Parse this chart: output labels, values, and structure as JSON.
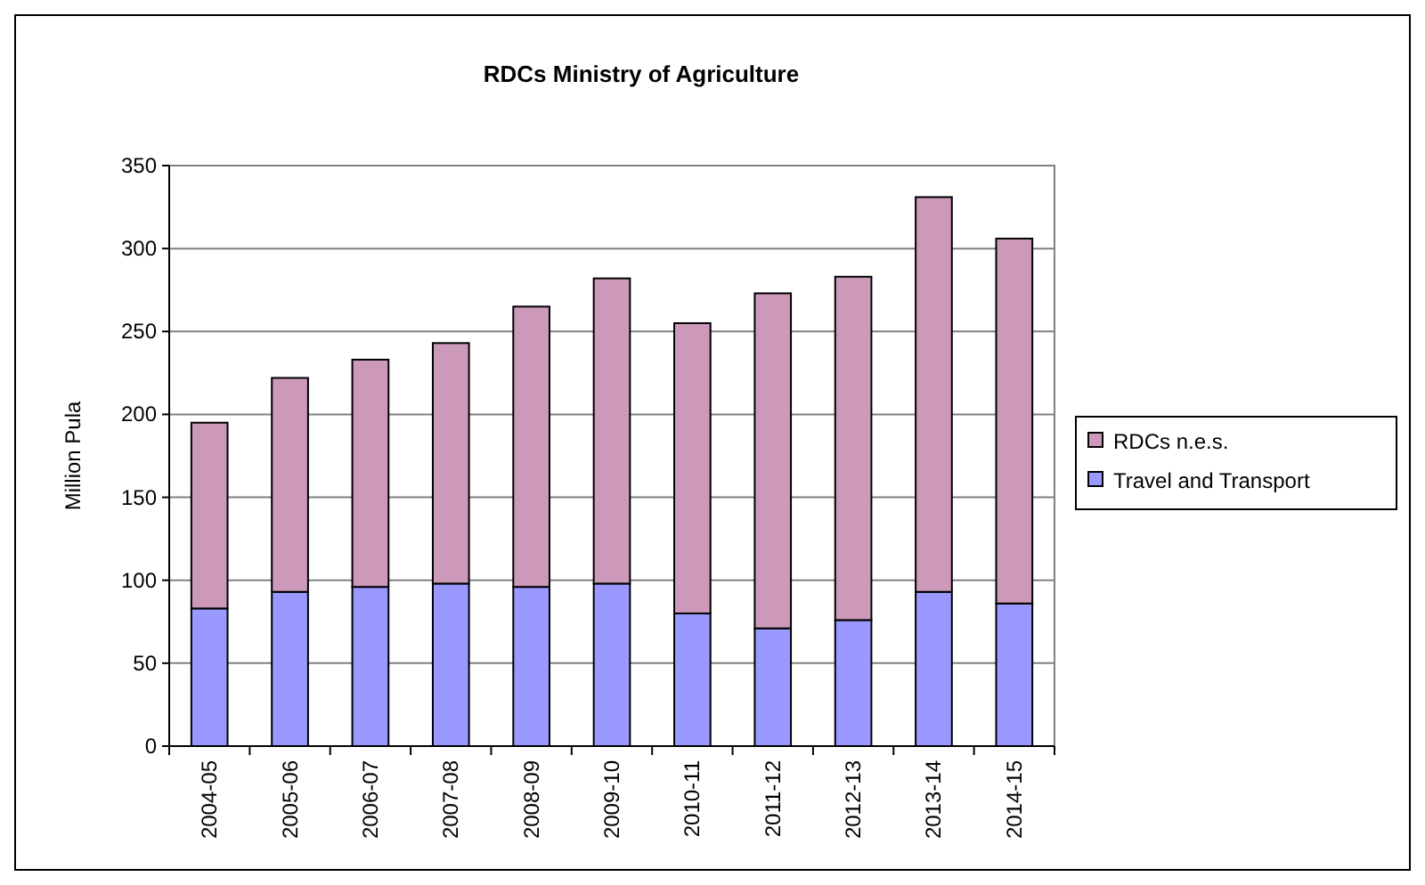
{
  "chart_data": {
    "type": "bar",
    "title": "RDCs Ministry of Agriculture",
    "ylabel": "Million Pula",
    "categories": [
      "2004-05",
      "2005-06",
      "2006-07",
      "2007-08",
      "2008-09",
      "2009-10",
      "2010-11",
      "2011-12",
      "2012-13",
      "2013-14",
      "2014-15"
    ],
    "stacked": true,
    "series": [
      {
        "name": "Travel and Transport",
        "color": "#9999ff",
        "values": [
          83,
          93,
          96,
          98,
          96,
          98,
          80,
          71,
          76,
          93,
          86
        ]
      },
      {
        "name": "RDCs n.e.s.",
        "color": "#cc99bb",
        "values": [
          112,
          129,
          137,
          145,
          169,
          184,
          175,
          202,
          207,
          238,
          220
        ]
      }
    ],
    "ylim": [
      0,
      350
    ],
    "yticks": [
      0,
      50,
      100,
      150,
      200,
      250,
      300,
      350
    ],
    "grid": "y",
    "legend": "right"
  }
}
